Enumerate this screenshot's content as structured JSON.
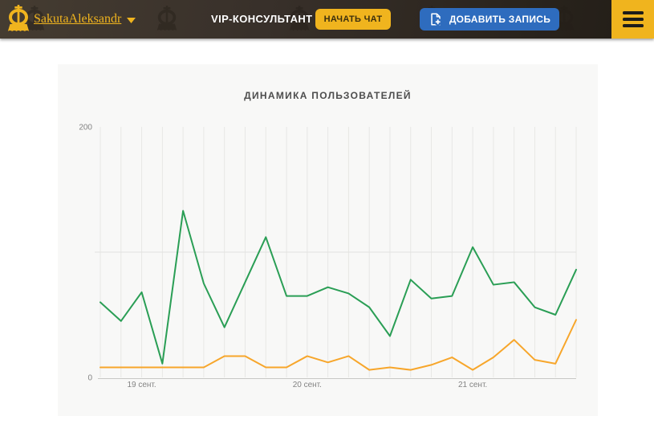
{
  "header": {
    "username": "SakutaAleksandr",
    "vip_label": "VIP-КОНСУЛЬТАНТ",
    "start_chat_label": "НАЧАТЬ ЧАТ",
    "add_record_label": "ДОБАВИТЬ ЗАПИСЬ",
    "colors": {
      "accent_yellow": "#f0b41e",
      "button_blue": "#2e6cbe",
      "bar_brown_dark": "#2a241d"
    },
    "icons": [
      "crown-logo-icon",
      "chevron-down-icon",
      "add-note-icon",
      "hamburger-menu-icon",
      "crown-watermark-icon"
    ]
  },
  "chart_data": {
    "type": "line",
    "title": "ДИНАМИКА ПОЛЬЗОВАТЕЛЕЙ",
    "xlabel": "",
    "ylabel": "",
    "ylim": [
      0,
      200
    ],
    "y_tick_labels": [
      {
        "value": 200,
        "label": "200"
      },
      {
        "value": 0,
        "label": "0"
      }
    ],
    "x_tick_labels": [
      {
        "index": 2,
        "label": "19 сент."
      },
      {
        "index": 10,
        "label": "20 сент."
      },
      {
        "index": 18,
        "label": "21 сент."
      }
    ],
    "grid": {
      "vertical": true,
      "horizontal_at": 100
    },
    "legend": "none",
    "series": [
      {
        "name": "series-green",
        "color": "#2a9e55",
        "values": [
          60,
          45,
          68,
          11,
          133,
          75,
          40,
          76,
          112,
          65,
          65,
          72,
          67,
          56,
          33,
          78,
          63,
          65,
          104,
          74,
          76,
          56,
          50,
          86
        ]
      },
      {
        "name": "series-orange",
        "color": "#f7a62b",
        "values": [
          8,
          8,
          8,
          8,
          8,
          8,
          17,
          17,
          8,
          8,
          17,
          12,
          17,
          6,
          8,
          6,
          10,
          16,
          6,
          16,
          30,
          14,
          11,
          46
        ]
      }
    ]
  }
}
